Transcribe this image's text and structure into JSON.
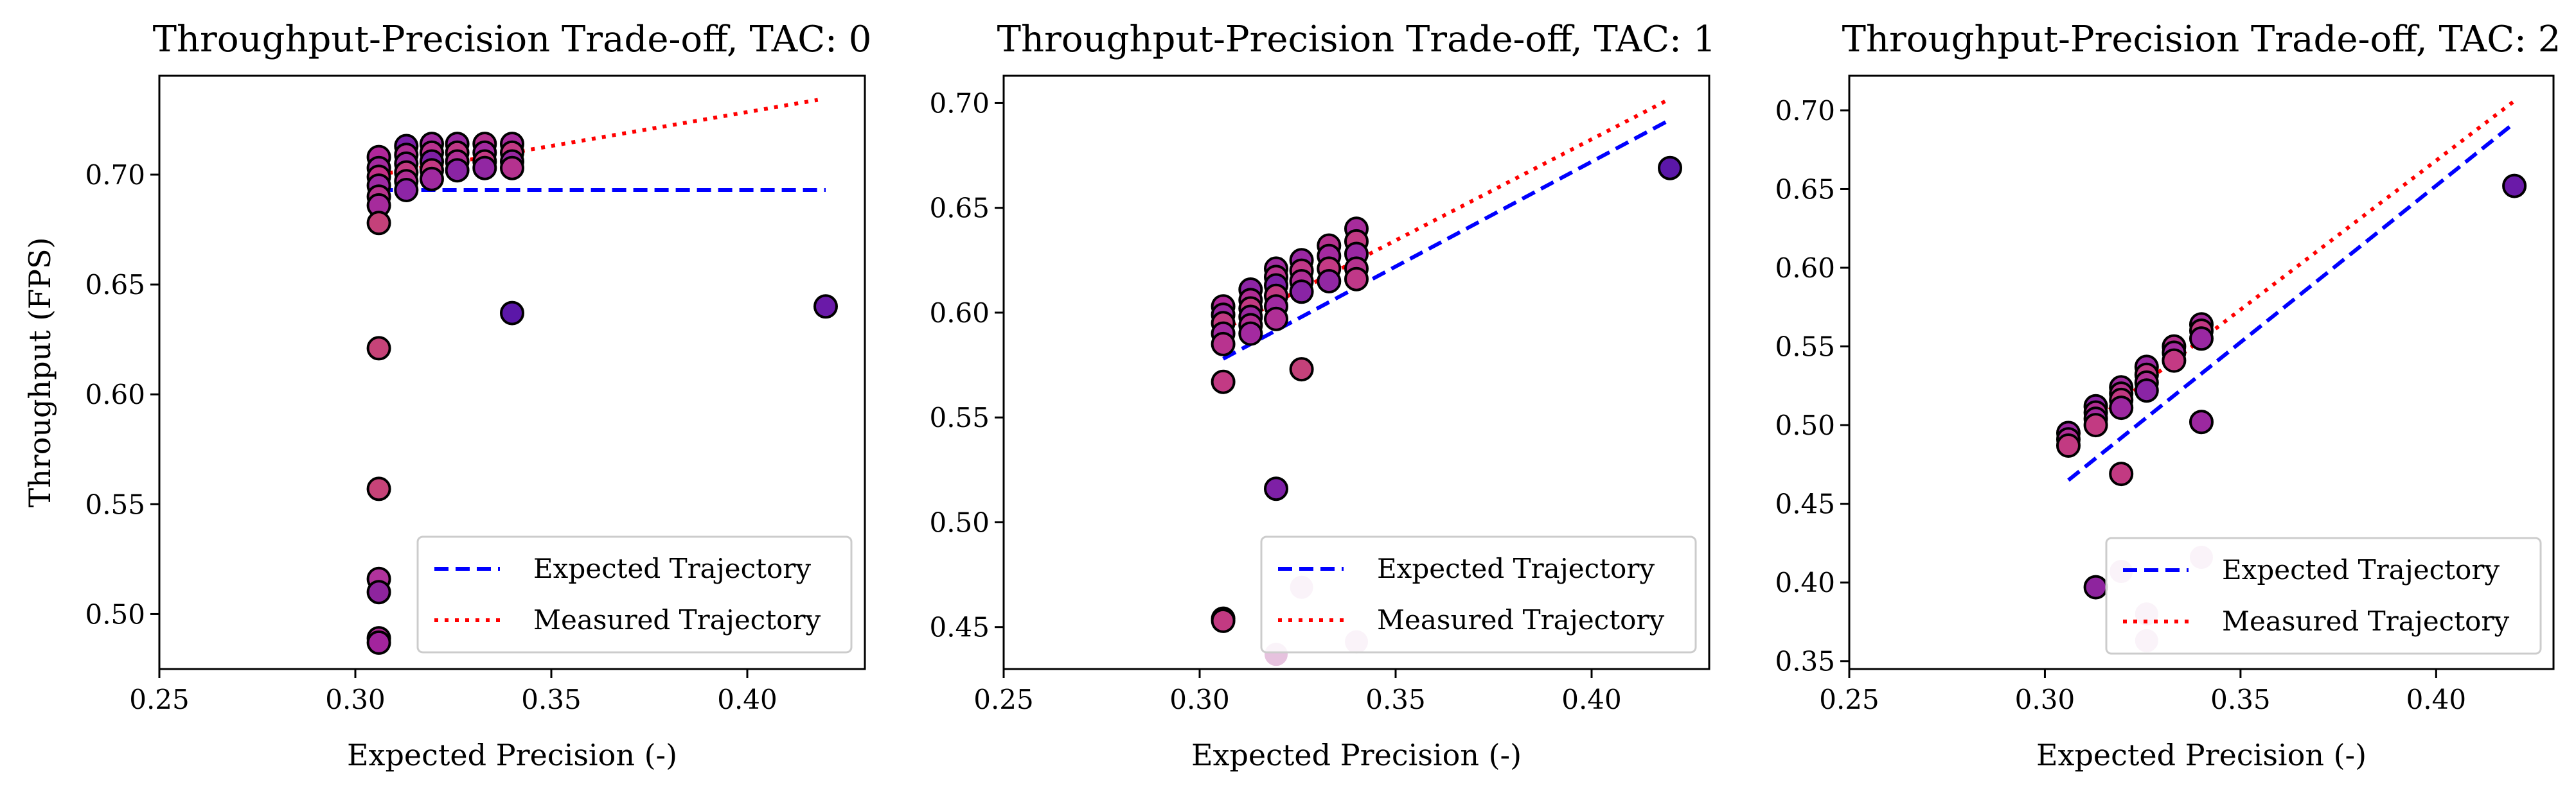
{
  "chart_data": [
    {
      "type": "scatter",
      "title": "Throughput-Precision Trade-off, TAC: 0",
      "xlabel": "Expected Precision (-)",
      "ylabel": "Throughput (FPS)",
      "xlim": [
        0.25,
        0.43
      ],
      "ylim": [
        0.475,
        0.745
      ],
      "xticks": [
        0.25,
        0.3,
        0.35,
        0.4
      ],
      "xtick_labels": [
        "0.25",
        "0.30",
        "0.35",
        "0.40"
      ],
      "yticks": [
        0.5,
        0.55,
        0.6,
        0.65,
        0.7
      ],
      "ytick_labels": [
        "0.50",
        "0.55",
        "0.60",
        "0.65",
        "0.70"
      ],
      "legend_position": "bottom-right",
      "series": [
        {
          "name": "Expected Trajectory",
          "kind": "line",
          "style": "dashed",
          "color": "#0000ff",
          "x": [
            0.306,
            0.42
          ],
          "y": [
            0.693,
            0.693
          ]
        },
        {
          "name": "Measured Trajectory",
          "kind": "line",
          "style": "dotted",
          "color": "#ff0000",
          "x": [
            0.306,
            0.34,
            0.418
          ],
          "y": [
            0.7,
            0.71,
            0.734
          ]
        }
      ],
      "points": [
        {
          "x": 0.306,
          "y": 0.708,
          "color": "#b0279a"
        },
        {
          "x": 0.306,
          "y": 0.703,
          "color": "#a42aa0"
        },
        {
          "x": 0.306,
          "y": 0.699,
          "color": "#c33088"
        },
        {
          "x": 0.306,
          "y": 0.695,
          "color": "#9d2aa3"
        },
        {
          "x": 0.306,
          "y": 0.69,
          "color": "#b8348f"
        },
        {
          "x": 0.306,
          "y": 0.686,
          "color": "#a62b9c"
        },
        {
          "x": 0.306,
          "y": 0.678,
          "color": "#c4417a"
        },
        {
          "x": 0.306,
          "y": 0.621,
          "color": "#c64378"
        },
        {
          "x": 0.306,
          "y": 0.557,
          "color": "#c64378"
        },
        {
          "x": 0.306,
          "y": 0.516,
          "color": "#b0339c"
        },
        {
          "x": 0.306,
          "y": 0.51,
          "color": "#8e249e"
        },
        {
          "x": 0.306,
          "y": 0.489,
          "color": "#b12a95"
        },
        {
          "x": 0.306,
          "y": 0.487,
          "color": "#a3249d"
        },
        {
          "x": 0.313,
          "y": 0.713,
          "color": "#7a1ea8"
        },
        {
          "x": 0.313,
          "y": 0.709,
          "color": "#b02d96"
        },
        {
          "x": 0.313,
          "y": 0.705,
          "color": "#9c28a0"
        },
        {
          "x": 0.313,
          "y": 0.701,
          "color": "#c23a82"
        },
        {
          "x": 0.313,
          "y": 0.697,
          "color": "#b32e95"
        },
        {
          "x": 0.313,
          "y": 0.693,
          "color": "#8e25a6"
        },
        {
          "x": 0.3195,
          "y": 0.714,
          "color": "#a12ba0"
        },
        {
          "x": 0.3195,
          "y": 0.71,
          "color": "#b8338f"
        },
        {
          "x": 0.3195,
          "y": 0.706,
          "color": "#7e20a6"
        },
        {
          "x": 0.3195,
          "y": 0.702,
          "color": "#c23a82"
        },
        {
          "x": 0.3195,
          "y": 0.698,
          "color": "#a02aa0"
        },
        {
          "x": 0.326,
          "y": 0.714,
          "color": "#9a28a2"
        },
        {
          "x": 0.326,
          "y": 0.71,
          "color": "#c03888"
        },
        {
          "x": 0.326,
          "y": 0.706,
          "color": "#b02f96"
        },
        {
          "x": 0.326,
          "y": 0.702,
          "color": "#8a24a5"
        },
        {
          "x": 0.333,
          "y": 0.714,
          "color": "#b5318f"
        },
        {
          "x": 0.333,
          "y": 0.71,
          "color": "#a42aa0"
        },
        {
          "x": 0.333,
          "y": 0.706,
          "color": "#c43a84"
        },
        {
          "x": 0.333,
          "y": 0.703,
          "color": "#9227a3"
        },
        {
          "x": 0.34,
          "y": 0.714,
          "color": "#a72c9c"
        },
        {
          "x": 0.34,
          "y": 0.71,
          "color": "#c23a84"
        },
        {
          "x": 0.34,
          "y": 0.706,
          "color": "#9a28a2"
        },
        {
          "x": 0.34,
          "y": 0.703,
          "color": "#b5328f"
        },
        {
          "x": 0.34,
          "y": 0.637,
          "color": "#5b17a8"
        },
        {
          "x": 0.42,
          "y": 0.64,
          "color": "#6a1aa8"
        }
      ]
    },
    {
      "type": "scatter",
      "title": "Throughput-Precision Trade-off, TAC: 1",
      "xlabel": "Expected Precision (-)",
      "ylabel": "",
      "xlim": [
        0.25,
        0.43
      ],
      "ylim": [
        0.43,
        0.713
      ],
      "xticks": [
        0.25,
        0.3,
        0.35,
        0.4
      ],
      "xtick_labels": [
        "0.25",
        "0.30",
        "0.35",
        "0.40"
      ],
      "yticks": [
        0.45,
        0.5,
        0.55,
        0.6,
        0.65,
        0.7
      ],
      "ytick_labels": [
        "0.45",
        "0.50",
        "0.55",
        "0.60",
        "0.65",
        "0.70"
      ],
      "legend_position": "bottom-right",
      "series": [
        {
          "name": "Expected Trajectory",
          "kind": "line",
          "style": "dashed",
          "color": "#0000ff",
          "x": [
            0.306,
            0.42
          ],
          "y": [
            0.578,
            0.692
          ]
        },
        {
          "name": "Measured Trajectory",
          "kind": "line",
          "style": "dotted",
          "color": "#ff0000",
          "x": [
            0.306,
            0.42
          ],
          "y": [
            0.592,
            0.702
          ]
        }
      ],
      "points": [
        {
          "x": 0.306,
          "y": 0.603,
          "color": "#b0279a"
        },
        {
          "x": 0.306,
          "y": 0.599,
          "color": "#9c28a0"
        },
        {
          "x": 0.306,
          "y": 0.595,
          "color": "#c23a82"
        },
        {
          "x": 0.306,
          "y": 0.59,
          "color": "#a42aa0"
        },
        {
          "x": 0.306,
          "y": 0.585,
          "color": "#b8338f"
        },
        {
          "x": 0.306,
          "y": 0.567,
          "color": "#c23a84"
        },
        {
          "x": 0.306,
          "y": 0.454,
          "color": "#c64378"
        },
        {
          "x": 0.306,
          "y": 0.453,
          "color": "#c23a82"
        },
        {
          "x": 0.313,
          "y": 0.611,
          "color": "#8e25a6"
        },
        {
          "x": 0.313,
          "y": 0.606,
          "color": "#b02d96"
        },
        {
          "x": 0.313,
          "y": 0.602,
          "color": "#c23a82"
        },
        {
          "x": 0.313,
          "y": 0.598,
          "color": "#9c28a0"
        },
        {
          "x": 0.313,
          "y": 0.594,
          "color": "#b32e95"
        },
        {
          "x": 0.313,
          "y": 0.59,
          "color": "#a42aa0"
        },
        {
          "x": 0.3195,
          "y": 0.621,
          "color": "#a12ba0"
        },
        {
          "x": 0.3195,
          "y": 0.617,
          "color": "#b8338f"
        },
        {
          "x": 0.3195,
          "y": 0.613,
          "color": "#7e20a6"
        },
        {
          "x": 0.3195,
          "y": 0.608,
          "color": "#c23a82"
        },
        {
          "x": 0.3195,
          "y": 0.603,
          "color": "#a02aa0"
        },
        {
          "x": 0.3195,
          "y": 0.597,
          "color": "#b02f96"
        },
        {
          "x": 0.3195,
          "y": 0.516,
          "color": "#7e20a6"
        },
        {
          "x": 0.3195,
          "y": 0.437,
          "color": "#e6c2de"
        },
        {
          "x": 0.326,
          "y": 0.625,
          "color": "#9a28a2"
        },
        {
          "x": 0.326,
          "y": 0.62,
          "color": "#c03888"
        },
        {
          "x": 0.326,
          "y": 0.615,
          "color": "#b02f96"
        },
        {
          "x": 0.326,
          "y": 0.61,
          "color": "#8a24a5"
        },
        {
          "x": 0.326,
          "y": 0.573,
          "color": "#c4417a"
        },
        {
          "x": 0.326,
          "y": 0.469,
          "color": "#e6c2de"
        },
        {
          "x": 0.333,
          "y": 0.632,
          "color": "#b5318f"
        },
        {
          "x": 0.333,
          "y": 0.627,
          "color": "#a42aa0"
        },
        {
          "x": 0.333,
          "y": 0.621,
          "color": "#c43a84"
        },
        {
          "x": 0.333,
          "y": 0.615,
          "color": "#9227a3"
        },
        {
          "x": 0.34,
          "y": 0.64,
          "color": "#a72c9c"
        },
        {
          "x": 0.34,
          "y": 0.634,
          "color": "#c23a84"
        },
        {
          "x": 0.34,
          "y": 0.628,
          "color": "#9a28a2"
        },
        {
          "x": 0.34,
          "y": 0.621,
          "color": "#b5328f"
        },
        {
          "x": 0.34,
          "y": 0.616,
          "color": "#c03888"
        },
        {
          "x": 0.34,
          "y": 0.443,
          "color": "#e6c2de"
        },
        {
          "x": 0.42,
          "y": 0.669,
          "color": "#5b17a8"
        }
      ]
    },
    {
      "type": "scatter",
      "title": "Throughput-Precision Trade-off, TAC: 2",
      "xlabel": "Expected Precision (-)",
      "ylabel": "",
      "xlim": [
        0.25,
        0.43
      ],
      "ylim": [
        0.345,
        0.722
      ],
      "xticks": [
        0.25,
        0.3,
        0.35,
        0.4
      ],
      "xtick_labels": [
        "0.25",
        "0.30",
        "0.35",
        "0.40"
      ],
      "yticks": [
        0.35,
        0.4,
        0.45,
        0.5,
        0.55,
        0.6,
        0.65,
        0.7
      ],
      "ytick_labels": [
        "0.35",
        "0.40",
        "0.45",
        "0.50",
        "0.55",
        "0.60",
        "0.65",
        "0.70"
      ],
      "legend_position": "bottom-right",
      "series": [
        {
          "name": "Expected Trajectory",
          "kind": "line",
          "style": "dashed",
          "color": "#0000ff",
          "x": [
            0.306,
            0.42
          ],
          "y": [
            0.465,
            0.692
          ]
        },
        {
          "name": "Measured Trajectory",
          "kind": "line",
          "style": "dotted",
          "color": "#ff0000",
          "x": [
            0.306,
            0.42
          ],
          "y": [
            0.49,
            0.706
          ]
        }
      ],
      "points": [
        {
          "x": 0.306,
          "y": 0.495,
          "color": "#9c28a0"
        },
        {
          "x": 0.306,
          "y": 0.491,
          "color": "#b02d96"
        },
        {
          "x": 0.306,
          "y": 0.487,
          "color": "#c23a82"
        },
        {
          "x": 0.313,
          "y": 0.512,
          "color": "#8e25a6"
        },
        {
          "x": 0.313,
          "y": 0.508,
          "color": "#b32e95"
        },
        {
          "x": 0.313,
          "y": 0.504,
          "color": "#a42aa0"
        },
        {
          "x": 0.313,
          "y": 0.5,
          "color": "#c23a82"
        },
        {
          "x": 0.313,
          "y": 0.397,
          "color": "#8e249e"
        },
        {
          "x": 0.3195,
          "y": 0.524,
          "color": "#a12ba0"
        },
        {
          "x": 0.3195,
          "y": 0.52,
          "color": "#b8338f"
        },
        {
          "x": 0.3195,
          "y": 0.516,
          "color": "#c23a82"
        },
        {
          "x": 0.3195,
          "y": 0.511,
          "color": "#9c28a0"
        },
        {
          "x": 0.3195,
          "y": 0.469,
          "color": "#c23a82"
        },
        {
          "x": 0.3195,
          "y": 0.407,
          "color": "#e6c2de"
        },
        {
          "x": 0.326,
          "y": 0.537,
          "color": "#9a28a2"
        },
        {
          "x": 0.326,
          "y": 0.532,
          "color": "#c03888"
        },
        {
          "x": 0.326,
          "y": 0.527,
          "color": "#b02f96"
        },
        {
          "x": 0.326,
          "y": 0.522,
          "color": "#8a24a5"
        },
        {
          "x": 0.326,
          "y": 0.38,
          "color": "#e6c2de"
        },
        {
          "x": 0.326,
          "y": 0.363,
          "color": "#e6c2de"
        },
        {
          "x": 0.333,
          "y": 0.55,
          "color": "#b5318f"
        },
        {
          "x": 0.333,
          "y": 0.546,
          "color": "#a42aa0"
        },
        {
          "x": 0.333,
          "y": 0.541,
          "color": "#c43a84"
        },
        {
          "x": 0.34,
          "y": 0.564,
          "color": "#a72c9c"
        },
        {
          "x": 0.34,
          "y": 0.56,
          "color": "#c23a84"
        },
        {
          "x": 0.34,
          "y": 0.555,
          "color": "#9a28a2"
        },
        {
          "x": 0.34,
          "y": 0.502,
          "color": "#9c28a0"
        },
        {
          "x": 0.34,
          "y": 0.416,
          "color": "#e6c2de"
        },
        {
          "x": 0.42,
          "y": 0.652,
          "color": "#6a1aa8"
        }
      ]
    }
  ]
}
